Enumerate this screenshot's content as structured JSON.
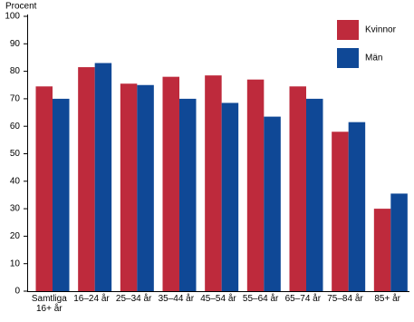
{
  "chart_data": {
    "type": "bar",
    "y_label": "Procent",
    "categories": [
      "Samtliga 16+ år",
      "16–24 år",
      "25–34 år",
      "35–44 år",
      "45–54 år",
      "55–64 år",
      "65–74 år",
      "75–84 år",
      "85+ år"
    ],
    "series": [
      {
        "name": "Kvinnor",
        "color": "#be2a3c",
        "values": [
          74.5,
          81.5,
          75.5,
          78,
          78.5,
          77,
          74.5,
          58,
          30
        ]
      },
      {
        "name": "Män",
        "color": "#0f4896",
        "values": [
          70,
          83,
          75,
          70,
          68.5,
          63.5,
          70,
          61.5,
          35.5
        ]
      }
    ],
    "ylim": [
      0,
      100
    ],
    "yticks": [
      0,
      10,
      20,
      30,
      40,
      50,
      60,
      70,
      80,
      90,
      100
    ],
    "grid": false
  }
}
